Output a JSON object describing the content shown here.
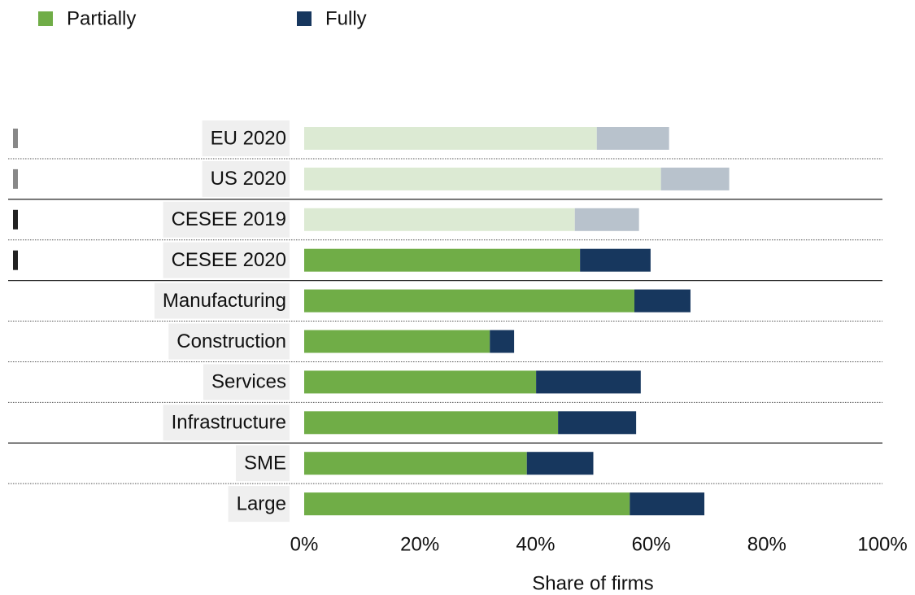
{
  "chart_data": {
    "type": "stacked-barh",
    "categories": [
      "EU 2020",
      "US 2020",
      "CESEE 2019",
      "CESEE 2020",
      "Manufacturing",
      "Construction",
      "Services",
      "Infrastructure",
      "SME",
      "Large"
    ],
    "series": [
      {
        "name": "Partially",
        "color": "#70ad47",
        "colors": [
          "#dcead3",
          "#dcead3",
          "#dcead3",
          "#70ad47",
          "#70ad47",
          "#70ad47",
          "#70ad47",
          "#70ad47",
          "#70ad47",
          "#70ad47"
        ],
        "values": [
          50.6,
          61.7,
          46.8,
          47.7,
          57.1,
          32.1,
          40.1,
          43.9,
          38.5,
          56.3
        ]
      },
      {
        "name": "Fully",
        "color": "#17375e",
        "colors": [
          "#b8c2cc",
          "#b8c2cc",
          "#b8c2cc",
          "#17375e",
          "#17375e",
          "#17375e",
          "#17375e",
          "#17375e",
          "#17375e",
          "#17375e"
        ],
        "values": [
          12.5,
          11.8,
          11.1,
          12.2,
          9.7,
          4.2,
          18.1,
          13.5,
          11.5,
          12.9
        ]
      }
    ],
    "xlabel": "Share of firms",
    "xlim": [
      0,
      100
    ],
    "xticks": [
      {
        "value": 0,
        "label": "0%"
      },
      {
        "value": 20,
        "label": "20%"
      },
      {
        "value": 40,
        "label": "40%"
      },
      {
        "value": 60,
        "label": "60%"
      },
      {
        "value": 80,
        "label": "80%"
      },
      {
        "value": 100,
        "label": "100%"
      }
    ],
    "legend": "top-left"
  }
}
